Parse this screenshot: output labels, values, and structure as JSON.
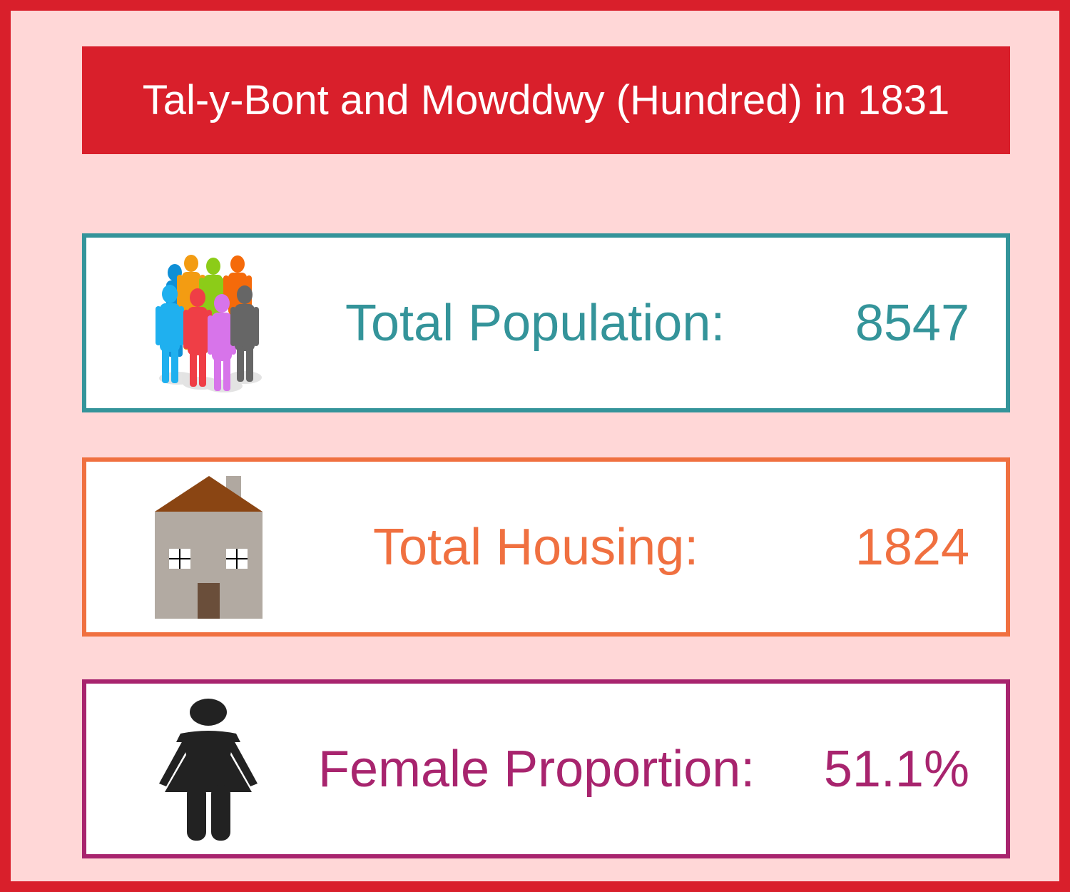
{
  "title": "Tal-y-Bont and Mowddwy (Hundred) in 1831",
  "colors": {
    "frame": "#d91f2b",
    "background": "#ffd7d7",
    "population": "#34949a",
    "housing": "#f07040",
    "female": "#a8246e"
  },
  "stats": {
    "population": {
      "icon": "people-group-icon",
      "label": "Total Population:",
      "value": "8547"
    },
    "housing": {
      "icon": "house-icon",
      "label": "Total Housing:",
      "value": "1824"
    },
    "female": {
      "icon": "woman-icon",
      "label": "Female Proportion:",
      "value": "51.1%"
    }
  }
}
